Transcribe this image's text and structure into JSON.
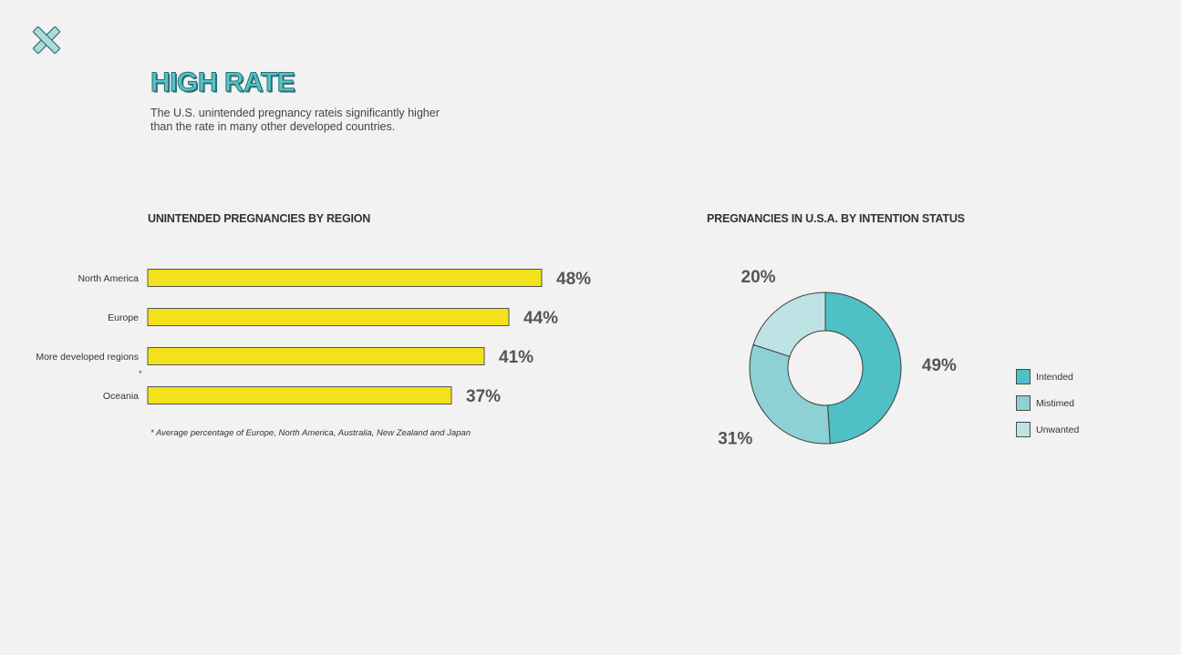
{
  "header": {
    "title": "HIGH RATE",
    "subtitle": "The U.S. unintended pregnancy rateis significantly higher than the rate in many other developed countries."
  },
  "icons": {
    "close": "close-icon"
  },
  "colors": {
    "accent": "#55c3c8",
    "bar": "#f2e11b",
    "intended": "#4fc1c6",
    "mistimed": "#8dd1d4",
    "unwanted": "#bde3e4"
  },
  "bar_section": {
    "title": "UNINTENDED PREGNANCIES BY REGION",
    "footnote_marker": "*",
    "footnote": "* Average percentage of Europe, North America, Australia, New Zealand and Japan"
  },
  "donut_section": {
    "title": "PREGNANCIES IN U.S.A. BY INTENTION STATUS"
  },
  "chart_data": [
    {
      "type": "bar",
      "orientation": "horizontal",
      "title": "UNINTENDED PREGNANCIES BY REGION",
      "categories": [
        "North America",
        "Europe",
        "More developed regions",
        "Oceania"
      ],
      "values": [
        48,
        44,
        41,
        37
      ],
      "value_labels": [
        "48%",
        "44%",
        "41%",
        "37%"
      ],
      "unit": "%",
      "xlim": [
        0,
        100
      ],
      "grid": false
    },
    {
      "type": "pie",
      "style": "donut",
      "title": "PREGNANCIES IN U.S.A. BY INTENTION STATUS",
      "categories": [
        "Intended",
        "Mistimed",
        "Unwanted"
      ],
      "values": [
        49,
        31,
        20
      ],
      "value_labels": [
        "49%",
        "31%",
        "20%"
      ],
      "legend": "right"
    }
  ]
}
